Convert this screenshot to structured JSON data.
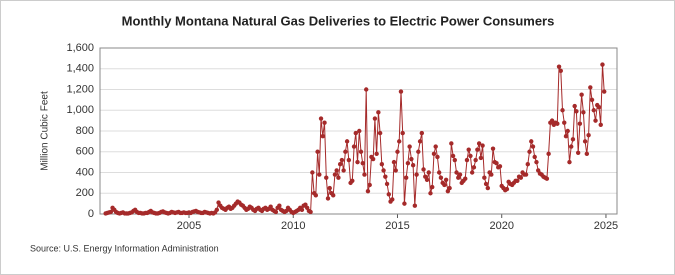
{
  "chart_data": {
    "type": "line",
    "title": "Monthly Montana Natural Gas Deliveries to Electric Power Consumers",
    "y_label": "Million Cubic Feet",
    "source": "Source: U.S. Energy Information Administration",
    "xlim": [
      2000.73,
      2025.53
    ],
    "xticks": [
      2005,
      2010,
      2015,
      2020,
      2025
    ],
    "ylim": [
      0,
      1600
    ],
    "yticks": [
      0,
      200,
      400,
      600,
      800,
      {
        "value": 1000,
        "label": "1,000"
      },
      {
        "value": 1200,
        "label": "1,200"
      },
      {
        "value": 1400,
        "label": "1,400"
      },
      {
        "value": 1600,
        "label": "1,600"
      }
    ],
    "grid": true,
    "x": [
      2001.0,
      2001.083,
      2001.167,
      2001.25,
      2001.333,
      2001.417,
      2001.5,
      2001.583,
      2001.667,
      2001.75,
      2001.833,
      2001.917,
      2002.0,
      2002.083,
      2002.167,
      2002.25,
      2002.333,
      2002.417,
      2002.5,
      2002.583,
      2002.667,
      2002.75,
      2002.833,
      2002.917,
      2003.0,
      2003.083,
      2003.167,
      2003.25,
      2003.333,
      2003.417,
      2003.5,
      2003.583,
      2003.667,
      2003.75,
      2003.833,
      2003.917,
      2004.0,
      2004.083,
      2004.167,
      2004.25,
      2004.333,
      2004.417,
      2004.5,
      2004.583,
      2004.667,
      2004.75,
      2004.833,
      2004.917,
      2005.0,
      2005.083,
      2005.167,
      2005.25,
      2005.333,
      2005.417,
      2005.5,
      2005.583,
      2005.667,
      2005.75,
      2005.833,
      2005.917,
      2006.0,
      2006.083,
      2006.167,
      2006.25,
      2006.333,
      2006.417,
      2006.5,
      2006.583,
      2006.667,
      2006.75,
      2006.833,
      2006.917,
      2007.0,
      2007.083,
      2007.167,
      2007.25,
      2007.333,
      2007.417,
      2007.5,
      2007.583,
      2007.667,
      2007.75,
      2007.833,
      2007.917,
      2008.0,
      2008.083,
      2008.167,
      2008.25,
      2008.333,
      2008.417,
      2008.5,
      2008.583,
      2008.667,
      2008.75,
      2008.833,
      2008.917,
      2009.0,
      2009.083,
      2009.167,
      2009.25,
      2009.333,
      2009.417,
      2009.5,
      2009.583,
      2009.667,
      2009.75,
      2009.833,
      2009.917,
      2010.0,
      2010.083,
      2010.167,
      2010.25,
      2010.333,
      2010.417,
      2010.5,
      2010.583,
      2010.667,
      2010.75,
      2010.833,
      2010.917,
      2011.0,
      2011.083,
      2011.167,
      2011.25,
      2011.333,
      2011.417,
      2011.5,
      2011.583,
      2011.667,
      2011.75,
      2011.833,
      2011.917,
      2012.0,
      2012.083,
      2012.167,
      2012.25,
      2012.333,
      2012.417,
      2012.5,
      2012.583,
      2012.667,
      2012.75,
      2012.833,
      2012.917,
      2013.0,
      2013.083,
      2013.167,
      2013.25,
      2013.333,
      2013.417,
      2013.5,
      2013.583,
      2013.667,
      2013.75,
      2013.833,
      2013.917,
      2014.0,
      2014.083,
      2014.167,
      2014.25,
      2014.333,
      2014.417,
      2014.5,
      2014.583,
      2014.667,
      2014.75,
      2014.833,
      2014.917,
      2015.0,
      2015.083,
      2015.167,
      2015.25,
      2015.333,
      2015.417,
      2015.5,
      2015.583,
      2015.667,
      2015.75,
      2015.833,
      2015.917,
      2016.0,
      2016.083,
      2016.167,
      2016.25,
      2016.333,
      2016.417,
      2016.5,
      2016.583,
      2016.667,
      2016.75,
      2016.833,
      2016.917,
      2017.0,
      2017.083,
      2017.167,
      2017.25,
      2017.333,
      2017.417,
      2017.5,
      2017.583,
      2017.667,
      2017.75,
      2017.833,
      2017.917,
      2018.0,
      2018.083,
      2018.167,
      2018.25,
      2018.333,
      2018.417,
      2018.5,
      2018.583,
      2018.667,
      2018.75,
      2018.833,
      2018.917,
      2019.0,
      2019.083,
      2019.167,
      2019.25,
      2019.333,
      2019.417,
      2019.5,
      2019.583,
      2019.667,
      2019.75,
      2019.833,
      2019.917,
      2020.0,
      2020.083,
      2020.167,
      2020.25,
      2020.333,
      2020.417,
      2020.5,
      2020.583,
      2020.667,
      2020.75,
      2020.833,
      2020.917,
      2021.0,
      2021.083,
      2021.167,
      2021.25,
      2021.333,
      2021.417,
      2021.5,
      2021.583,
      2021.667,
      2021.75,
      2021.833,
      2021.917,
      2022.0,
      2022.083,
      2022.167,
      2022.25,
      2022.333,
      2022.417,
      2022.5,
      2022.583,
      2022.667,
      2022.75,
      2022.833,
      2022.917,
      2023.0,
      2023.083,
      2023.167,
      2023.25,
      2023.333,
      2023.417,
      2023.5,
      2023.583,
      2023.667,
      2023.75,
      2023.833,
      2023.917,
      2024.0,
      2024.083,
      2024.167,
      2024.25,
      2024.333,
      2024.417,
      2024.5,
      2024.583,
      2024.667,
      2024.75,
      2024.833,
      2024.917
    ],
    "series": [
      {
        "color": "#a52a2a",
        "values": [
          5,
          10,
          15,
          20,
          60,
          40,
          20,
          10,
          5,
          10,
          15,
          5,
          5,
          5,
          10,
          15,
          30,
          40,
          20,
          10,
          10,
          5,
          5,
          10,
          10,
          20,
          30,
          15,
          10,
          5,
          5,
          10,
          20,
          25,
          15,
          10,
          5,
          10,
          20,
          15,
          10,
          15,
          20,
          10,
          10,
          15,
          10,
          10,
          15,
          10,
          20,
          25,
          30,
          20,
          15,
          10,
          10,
          20,
          15,
          10,
          5,
          10,
          5,
          15,
          40,
          110,
          80,
          60,
          50,
          40,
          60,
          70,
          50,
          60,
          80,
          100,
          120,
          110,
          90,
          80,
          60,
          40,
          50,
          70,
          60,
          40,
          30,
          50,
          60,
          40,
          30,
          50,
          60,
          40,
          50,
          70,
          40,
          30,
          20,
          60,
          80,
          40,
          30,
          20,
          30,
          60,
          40,
          20,
          10,
          20,
          30,
          40,
          60,
          40,
          80,
          90,
          60,
          30,
          20,
          400,
          200,
          180,
          600,
          380,
          920,
          750,
          880,
          350,
          150,
          250,
          200,
          180,
          380,
          420,
          350,
          480,
          520,
          420,
          600,
          700,
          520,
          300,
          320,
          650,
          780,
          500,
          800,
          600,
          490,
          380,
          1200,
          220,
          280,
          550,
          530,
          920,
          580,
          980,
          780,
          480,
          420,
          360,
          290,
          190,
          120,
          140,
          500,
          420,
          600,
          700,
          1180,
          780,
          100,
          350,
          490,
          650,
          530,
          470,
          80,
          380,
          600,
          700,
          780,
          430,
          360,
          330,
          400,
          200,
          260,
          580,
          650,
          550,
          400,
          350,
          300,
          280,
          330,
          220,
          250,
          680,
          560,
          520,
          400,
          350,
          380,
          300,
          320,
          340,
          520,
          620,
          560,
          400,
          450,
          520,
          620,
          680,
          540,
          660,
          350,
          290,
          250,
          400,
          380,
          630,
          500,
          490,
          450,
          460,
          270,
          250,
          230,
          240,
          310,
          290,
          280,
          300,
          320,
          320,
          360,
          350,
          400,
          380,
          380,
          480,
          600,
          700,
          650,
          550,
          500,
          420,
          390,
          380,
          360,
          350,
          340,
          580,
          880,
          900,
          860,
          880,
          870,
          1420,
          1380,
          1000,
          880,
          750,
          800,
          500,
          650,
          720,
          1040,
          990,
          590,
          870,
          1150,
          980,
          700,
          580,
          760,
          1220,
          1100,
          1000,
          900,
          1050,
          1030,
          860,
          1440,
          1180
        ]
      }
    ]
  }
}
